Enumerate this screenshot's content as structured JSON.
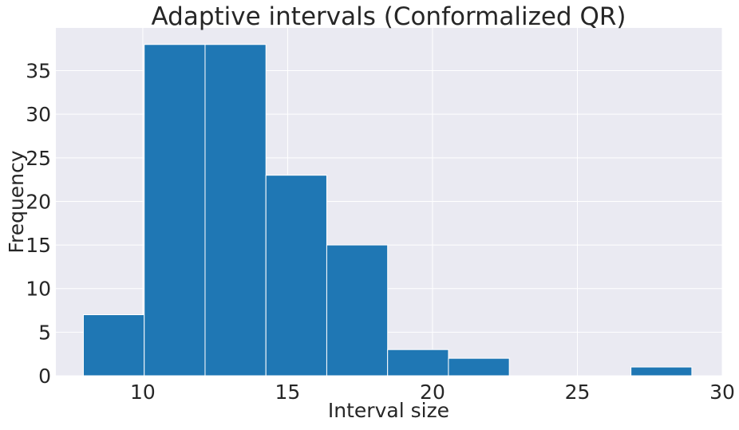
{
  "chart_data": {
    "type": "bar",
    "title": "Adaptive intervals (Conformalized QR)",
    "xlabel": "Interval size",
    "ylabel": "Frequency",
    "bin_edges": [
      7.95,
      10.05,
      12.15,
      14.25,
      16.35,
      18.45,
      20.55,
      22.65,
      24.75,
      26.85,
      28.95
    ],
    "values": [
      7,
      38,
      38,
      23,
      15,
      3,
      2,
      0,
      0,
      1
    ],
    "xlim": [
      7,
      30
    ],
    "ylim": [
      0,
      39.9
    ],
    "x_ticks": [
      10,
      15,
      20,
      25,
      30
    ],
    "y_ticks": [
      0,
      5,
      10,
      15,
      20,
      25,
      30,
      35
    ],
    "grid": true,
    "colors": {
      "bar": "#1f77b4",
      "background": "#eaeaf2",
      "grid": "#ffffff",
      "text": "#262626"
    }
  }
}
